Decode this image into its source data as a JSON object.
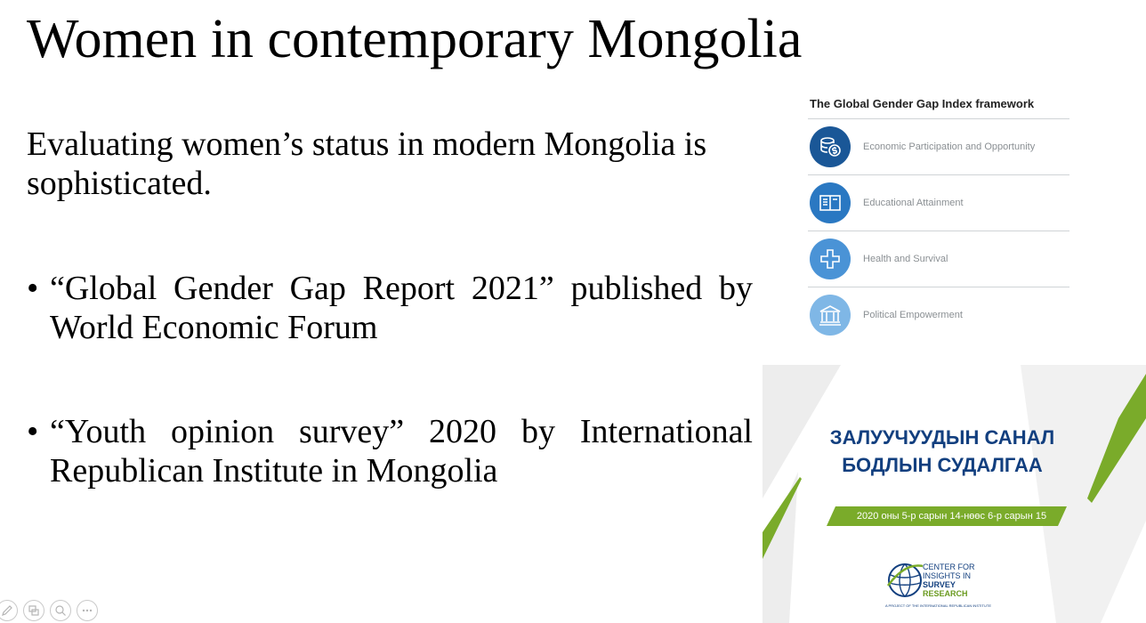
{
  "slide": {
    "title": "Women in contemporary Mongolia",
    "intro": "Evaluating women’s status in modern Mongolia is sophisticated.",
    "bullets": [
      "“Global Gender Gap Report 2021” published by World Economic Forum",
      "“Youth opinion survey” 2020 by International Republican Institute in Mongolia"
    ],
    "bullet_marker": "•"
  },
  "gggi": {
    "title": "The Global Gender Gap Index framework",
    "items": [
      {
        "label": "Economic Participation and Opportunity",
        "icon": "coins-dollar-icon",
        "color": "#1a5797"
      },
      {
        "label": "Educational Attainment",
        "icon": "open-book-icon",
        "color": "#2a78c2"
      },
      {
        "label": "Health and Survival",
        "icon": "medical-cross-icon",
        "color": "#4a93d6"
      },
      {
        "label": "Political Empowerment",
        "icon": "government-building-icon",
        "color": "#7fb7e6"
      }
    ]
  },
  "survey_cover": {
    "title_line1": "ЗАЛУУЧУУДЫН САНАЛ",
    "title_line2": "БОДЛЫН СУДАЛГАА",
    "date": "2020 оны 5-р сарын 14-нөөс 6-р сарын 15",
    "logo": {
      "line1": "CENTER FOR",
      "line2": "INSIGHTS IN",
      "line3": "SURVEY",
      "line4": "RESEARCH",
      "footer": "A PROJECT OF THE INTERNATIONAL REPUBLICAN INSTITUTE"
    },
    "colors": {
      "green": "#7aab2a",
      "navy": "#123f7f",
      "gray": "#ededed"
    }
  },
  "toolbar": {
    "buttons": [
      "pen-icon",
      "slides-icon",
      "zoom-icon",
      "more-icon"
    ]
  }
}
